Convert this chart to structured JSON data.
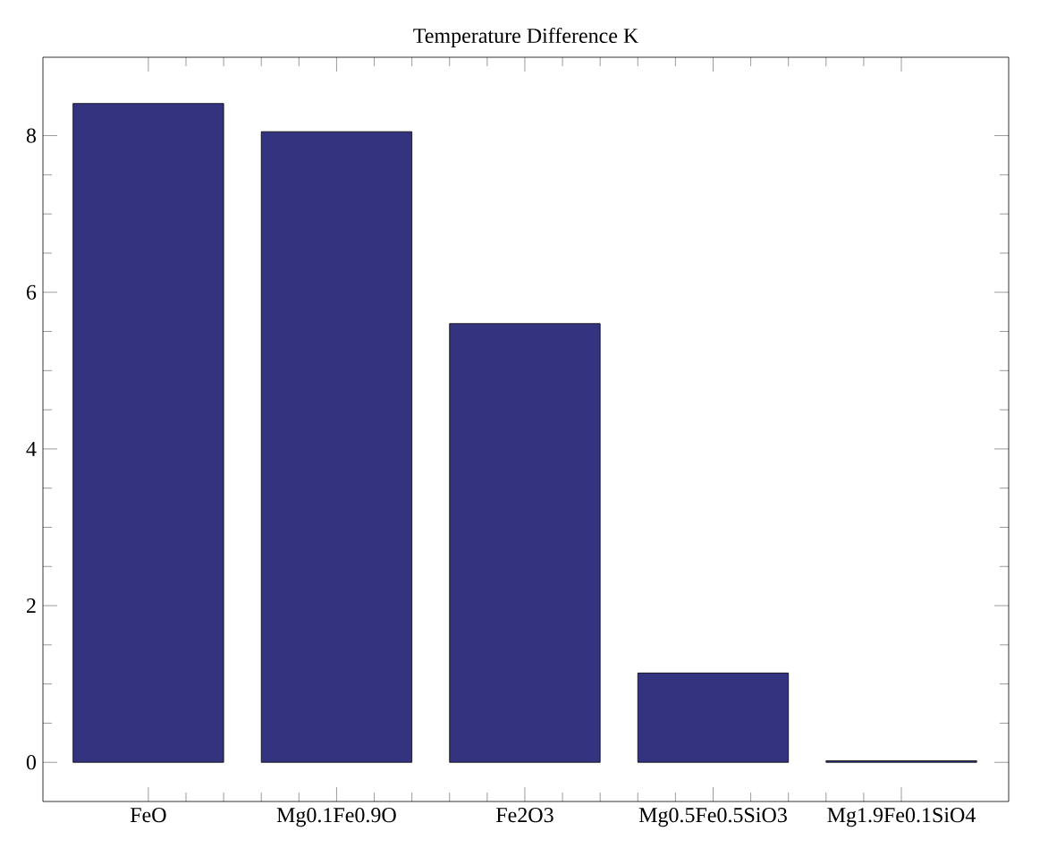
{
  "chart_data": {
    "type": "bar",
    "title": "Temperature Difference K",
    "categories": [
      "FeO",
      "Mg0.1Fe0.9O",
      "Fe2O3",
      "Mg0.5Fe0.5SiO3",
      "Mg1.9Fe0.1SiO4"
    ],
    "values": [
      8.41,
      8.05,
      5.6,
      1.14,
      0.02
    ],
    "color": "#333380",
    "ylim": [
      -0.5,
      9
    ],
    "yticks": [
      0,
      2,
      4,
      6,
      8
    ],
    "grid": false
  }
}
